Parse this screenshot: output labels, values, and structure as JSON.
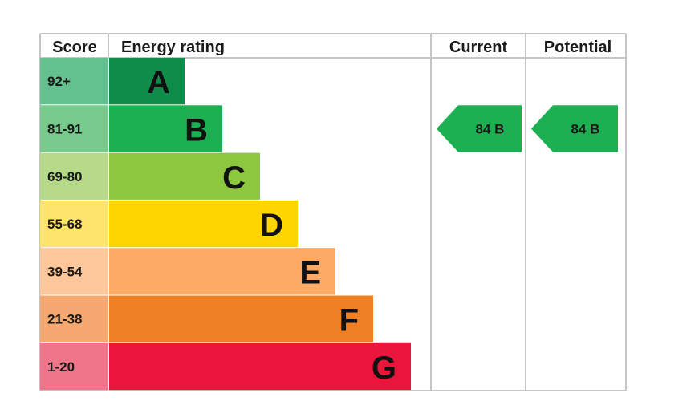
{
  "chart_data": {
    "type": "bar",
    "headers": {
      "score": "Score",
      "rating": "Energy rating",
      "current": "Current",
      "potential": "Potential"
    },
    "bands": [
      {
        "score": "92+",
        "letter": "A",
        "color": "#0f8b4a",
        "score_bg": "#63c08f"
      },
      {
        "score": "81-91",
        "letter": "B",
        "color": "#1db053",
        "score_bg": "#78c98c"
      },
      {
        "score": "69-80",
        "letter": "C",
        "color": "#8dc63f",
        "score_bg": "#b6da87"
      },
      {
        "score": "55-68",
        "letter": "D",
        "color": "#ffd500",
        "score_bg": "#ffe46b"
      },
      {
        "score": "39-54",
        "letter": "E",
        "color": "#fcaa65",
        "score_bg": "#fdc79b"
      },
      {
        "score": "21-38",
        "letter": "F",
        "color": "#ef8023",
        "score_bg": "#f5a970"
      },
      {
        "score": "1-20",
        "letter": "G",
        "color": "#e9153b",
        "score_bg": "#f0758a"
      }
    ],
    "current": {
      "value": 84,
      "letter": "B",
      "label": "84  B",
      "color": "#1db053"
    },
    "potential": {
      "value": 84,
      "letter": "B",
      "label": "84  B",
      "color": "#1db053"
    }
  }
}
